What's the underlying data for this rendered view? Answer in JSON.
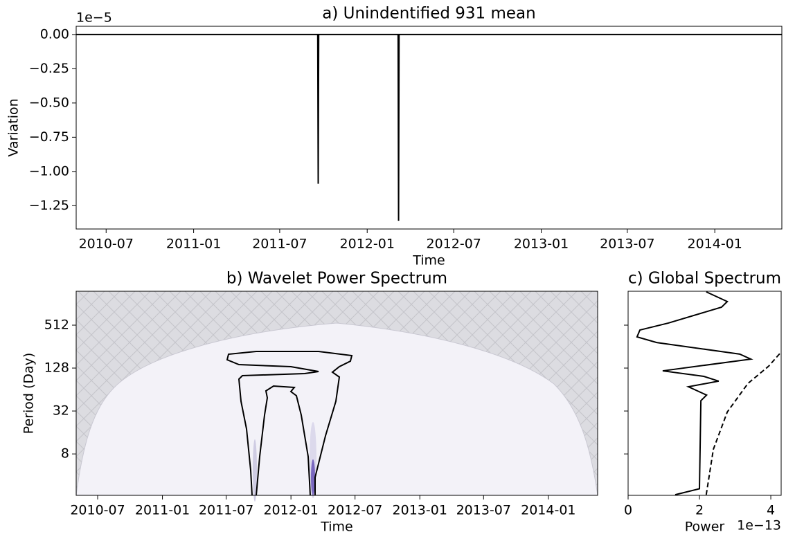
{
  "chart_data": [
    {
      "type": "line",
      "title": "a) Unindentified 931 mean",
      "x_label": "Time",
      "y_label": "Variation",
      "y_offset_label": "1e−5",
      "xscale": "time",
      "xlim": [
        "2010-04-29",
        "2014-05-22"
      ],
      "xticks": [
        "2010-07",
        "2011-01",
        "2011-07",
        "2012-01",
        "2012-07",
        "2013-01",
        "2013-07",
        "2014-01"
      ],
      "ylim": [
        -1.42,
        0.06
      ],
      "yticks": [
        {
          "value": 0,
          "label": "0.00"
        },
        {
          "value": -0.25,
          "label": "−0.25"
        },
        {
          "value": -0.5,
          "label": "−0.50"
        },
        {
          "value": -0.75,
          "label": "−0.75"
        },
        {
          "value": -1,
          "label": "−1.00"
        },
        {
          "value": -1.25,
          "label": "−1.25"
        }
      ],
      "x": [
        "2010-04-29",
        "2011-09-19",
        "2011-09-20",
        "2011-09-21",
        "2012-03-06",
        "2012-03-07",
        "2012-03-08",
        "2014-05-22"
      ],
      "series": [
        {
          "color": "#000000",
          "style": "solid",
          "values": [
            0,
            0,
            -1.09,
            0,
            0,
            -1.36,
            0,
            0
          ]
        }
      ]
    },
    {
      "type": "contour",
      "title": "b) Wavelet Power Spectrum",
      "x_label": "Time",
      "y_label": "Period (Day)",
      "xscale": "time",
      "xlim": [
        "2010-05-01",
        "2014-05-21"
      ],
      "xticks": [
        "2010-07",
        "2011-01",
        "2011-07",
        "2012-01",
        "2012-07",
        "2013-01",
        "2013-07",
        "2014-01"
      ],
      "yscale": "log",
      "ylim": [
        2.1,
        1530
      ],
      "yticks": [
        8,
        32,
        128,
        512
      ]
    },
    {
      "type": "line",
      "title": "c) Global Spectrum",
      "x_label": "Power",
      "x_offset_label": "1e−13",
      "xlim": [
        0,
        4.29
      ],
      "xticks": [
        0,
        2,
        4
      ],
      "yscale": "log",
      "ylim": [
        2.1,
        1530
      ],
      "yticks": [
        8,
        32,
        128,
        512
      ],
      "ytick_labels": false,
      "series": [
        {
          "color": "#000000",
          "style": "solid",
          "x": [
            1.32,
            2.0,
            2.04,
            2.2,
            1.69,
            2.54,
            2.12,
            0.97,
            3.44,
            3.13,
            0.8,
            0.25,
            0.33,
            1.13,
            2.62,
            2.78,
            2.19
          ],
          "values": [
            2.14,
            2.6,
            44.7,
            53.5,
            70,
            84,
            98,
            117,
            171,
            201,
            292,
            350,
            437,
            548,
            916,
            1097,
            1500
          ]
        },
        {
          "color": "#000000",
          "style": "dashed",
          "x": [
            2.19,
            2.39,
            2.78,
            3.36,
            3.94,
            4.25
          ],
          "values": [
            2.14,
            9.3,
            31,
            78,
            136,
            204
          ]
        }
      ]
    }
  ]
}
